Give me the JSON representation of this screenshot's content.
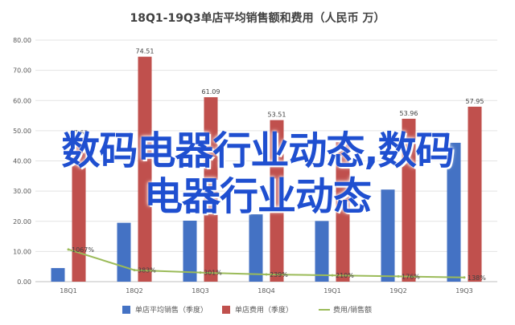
{
  "chart_data": {
    "type": "bar",
    "title": "18Q1-19Q3单店平均销售额和费用（人民币 万）",
    "categories": [
      "18Q1",
      "18Q2",
      "18Q3",
      "18Q4",
      "19Q1",
      "19Q2",
      "19Q3"
    ],
    "ylim": [
      0,
      80
    ],
    "yticks": [
      "0.00",
      "10.00",
      "20.00",
      "30.00",
      "40.00",
      "50.00",
      "60.00",
      "70.00",
      "80.00"
    ],
    "grid": true,
    "legend_position": "bottom",
    "series": [
      {
        "name": "单店平均销售（季度）",
        "type": "bar",
        "color": "#4472c4",
        "values": [
          4.5,
          19.5,
          20.2,
          22.3,
          20.1,
          30.5,
          46.0
        ],
        "labels": [
          "",
          "",
          "",
          "",
          "",
          "",
          ""
        ]
      },
      {
        "name": "单店费用（季度）",
        "type": "bar",
        "color": "#c0504d",
        "values": [
          47.62,
          74.51,
          61.09,
          53.51,
          46.2,
          53.96,
          57.95
        ],
        "labels": [
          "47.62",
          "74.51",
          "61.09",
          "53.51",
          "",
          "53.96",
          "57.95"
        ]
      },
      {
        "name": "费用/销售额",
        "type": "line",
        "color": "#9bbb59",
        "values": [
          10.67,
          3.83,
          3.01,
          2.39,
          2.1,
          1.76,
          1.38
        ],
        "labels": [
          "1067%",
          "383%",
          "301%",
          "239%",
          "210%",
          "176%",
          "138%"
        ]
      }
    ]
  },
  "overlay": {
    "line1": "数码电器行业动态,数码",
    "line2": "电器行业动态"
  }
}
